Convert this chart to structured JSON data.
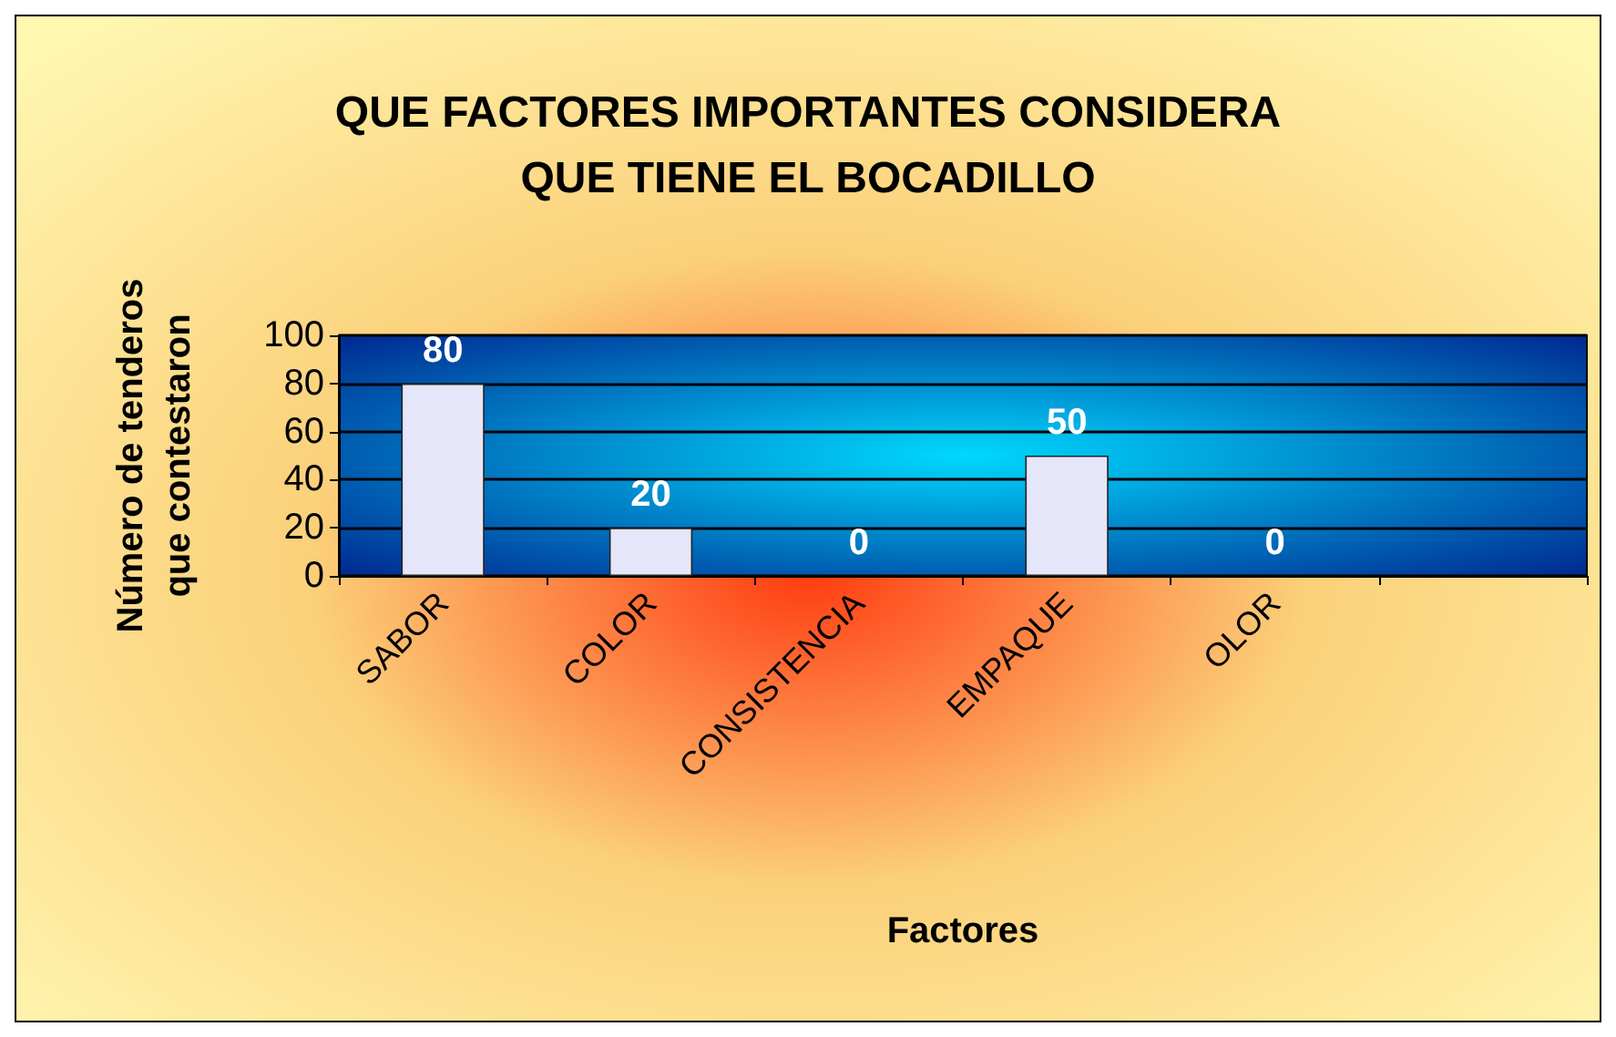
{
  "chart_data": {
    "type": "bar",
    "title": "QUE FACTORES IMPORTANTES CONSIDERA\nQUE TIENE EL BOCADILLO",
    "xlabel": "Factores",
    "ylabel": "Número de tenderos\nque contestaron",
    "categories": [
      "SABOR",
      "COLOR",
      "CONSISTENCIA",
      "EMPAQUE",
      "OLOR",
      null
    ],
    "values": [
      80,
      20,
      0,
      50,
      0,
      null
    ],
    "color": "#e6e6fa",
    "ylim": [
      0,
      100
    ],
    "yticks": [
      0,
      20,
      40,
      60,
      80,
      100
    ],
    "grid": "y",
    "data_labels": true
  }
}
